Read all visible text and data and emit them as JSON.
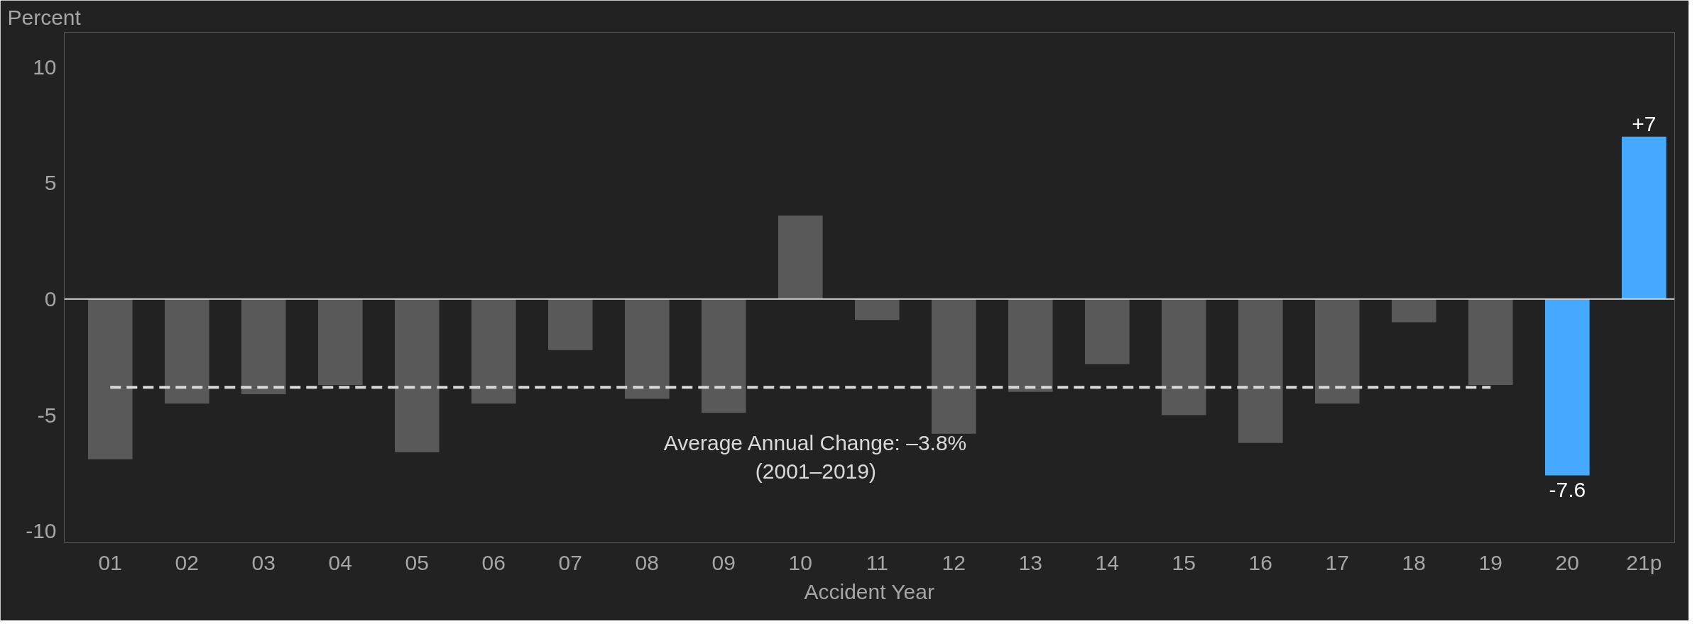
{
  "chart_data": {
    "type": "bar",
    "ylabel": "Percent",
    "xlabel": "Accident Year",
    "categories": [
      "01",
      "02",
      "03",
      "04",
      "05",
      "06",
      "07",
      "08",
      "09",
      "10",
      "11",
      "12",
      "13",
      "14",
      "15",
      "16",
      "17",
      "18",
      "19",
      "20",
      "21p"
    ],
    "values": [
      -6.9,
      -4.5,
      -4.1,
      -3.7,
      -6.6,
      -4.5,
      -2.2,
      -4.3,
      -4.9,
      3.6,
      -0.9,
      -5.8,
      -4.0,
      -2.8,
      -5.0,
      -6.2,
      -4.5,
      -1.0,
      -3.7,
      -7.6,
      7
    ],
    "colors": [
      "#595959",
      "#595959",
      "#595959",
      "#595959",
      "#595959",
      "#595959",
      "#595959",
      "#595959",
      "#595959",
      "#595959",
      "#595959",
      "#595959",
      "#595959",
      "#595959",
      "#595959",
      "#595959",
      "#595959",
      "#595959",
      "#595959",
      "#45aaff",
      "#45aaff"
    ],
    "value_labels": [
      null,
      null,
      null,
      null,
      null,
      null,
      null,
      null,
      null,
      null,
      null,
      null,
      null,
      null,
      null,
      null,
      null,
      null,
      null,
      "-7.6",
      "+7"
    ],
    "series": [
      {
        "type": "line",
        "color": "#d9d9d9",
        "line_style": "dashed",
        "values": [
          -3.8,
          -3.8,
          -3.8,
          -3.8,
          -3.8,
          -3.8,
          -3.8,
          -3.8,
          -3.8,
          -3.8,
          -3.8,
          -3.8,
          -3.8,
          -3.8,
          -3.8,
          -3.8,
          -3.8,
          -3.8,
          -3.8,
          null,
          null
        ]
      }
    ],
    "annotations": [
      "Average Annual Change: –3.8%\n(2001–2019)"
    ],
    "ylim": [
      -10.5,
      11.5
    ],
    "yticks": [
      -10,
      -5,
      0,
      5,
      10
    ],
    "grid": false
  }
}
